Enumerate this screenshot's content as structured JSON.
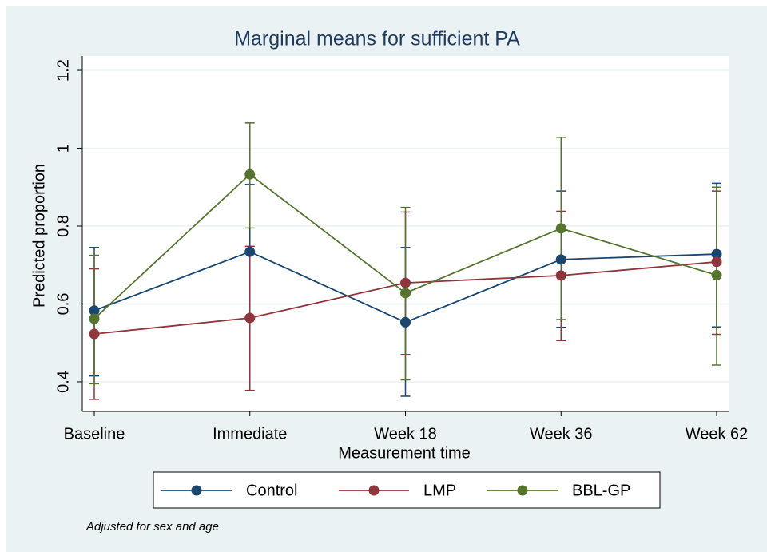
{
  "chart_data": {
    "type": "line",
    "title": "Marginal means for sufficient PA",
    "x_label": "Measurement time",
    "y_label": "Predicted proportion",
    "note": "Adjusted for sex and age",
    "categories": [
      "Baseline",
      "Immediate",
      "Week 18",
      "Week 36",
      "Week 62"
    ],
    "series": [
      {
        "name": "Control",
        "color": "#1a476f",
        "values": [
          0.583,
          0.734,
          0.553,
          0.714,
          0.728
        ],
        "lower": [
          0.415,
          0.56,
          0.363,
          0.54,
          0.541
        ],
        "upper": [
          0.745,
          0.907,
          0.745,
          0.89,
          0.91
        ]
      },
      {
        "name": "LMP",
        "color": "#90353b",
        "values": [
          0.523,
          0.564,
          0.654,
          0.673,
          0.708
        ],
        "lower": [
          0.355,
          0.378,
          0.47,
          0.506,
          0.522
        ],
        "upper": [
          0.69,
          0.748,
          0.836,
          0.838,
          0.89
        ]
      },
      {
        "name": "BBL-GP",
        "color": "#55752f",
        "values": [
          0.562,
          0.933,
          0.628,
          0.794,
          0.674
        ],
        "lower": [
          0.395,
          0.795,
          0.405,
          0.56,
          0.443
        ],
        "upper": [
          0.725,
          1.065,
          0.848,
          1.028,
          0.9
        ]
      }
    ],
    "ylim": [
      0.324,
      1.237
    ],
    "yticks": [
      0.4,
      0.6,
      0.8,
      1,
      1.2
    ],
    "grid": true
  }
}
